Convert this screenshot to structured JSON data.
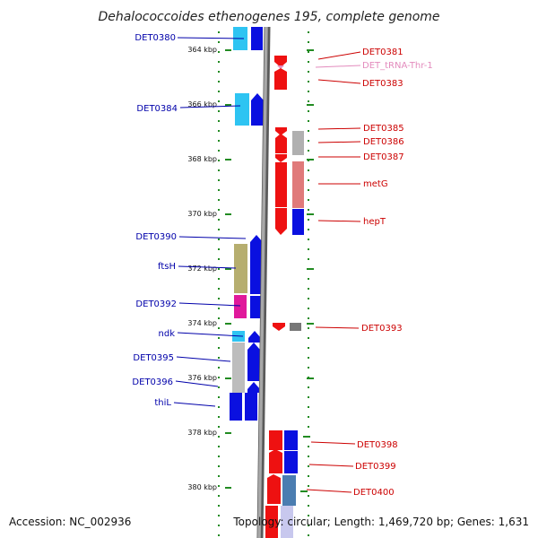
{
  "title": "Dehalococcoides ethenogenes 195, complete genome",
  "accession_text": "Accession: NC_002936",
  "topology_text": "Topology: circular; Length: 1,469,720 bp; Genes: 1,631",
  "colors": {
    "left_label": "#0000aa",
    "right_label": "#cc0000",
    "trna_label": "#e38bbd",
    "scale_tick": "#228b22",
    "backbone": "#8a8a8a"
  },
  "scale_ticks": [
    "364 kbp",
    "366 kbp",
    "368 kbp",
    "370 kbp",
    "372 kbp",
    "374 kbp",
    "376 kbp",
    "378 kbp",
    "380 kbp"
  ],
  "left_labels": [
    "DET0380",
    "DET0384",
    "DET0390",
    "ftsH",
    "DET0392",
    "ndk",
    "DET0395",
    "DET0396",
    "thiL"
  ],
  "right_labels": [
    "DET0381",
    "DET_tRNA-Thr-1",
    "DET0383",
    "DET0385",
    "DET0386",
    "DET0387",
    "metG",
    "hepT",
    "DET0393",
    "DET0398",
    "DET0399",
    "DET0400"
  ]
}
